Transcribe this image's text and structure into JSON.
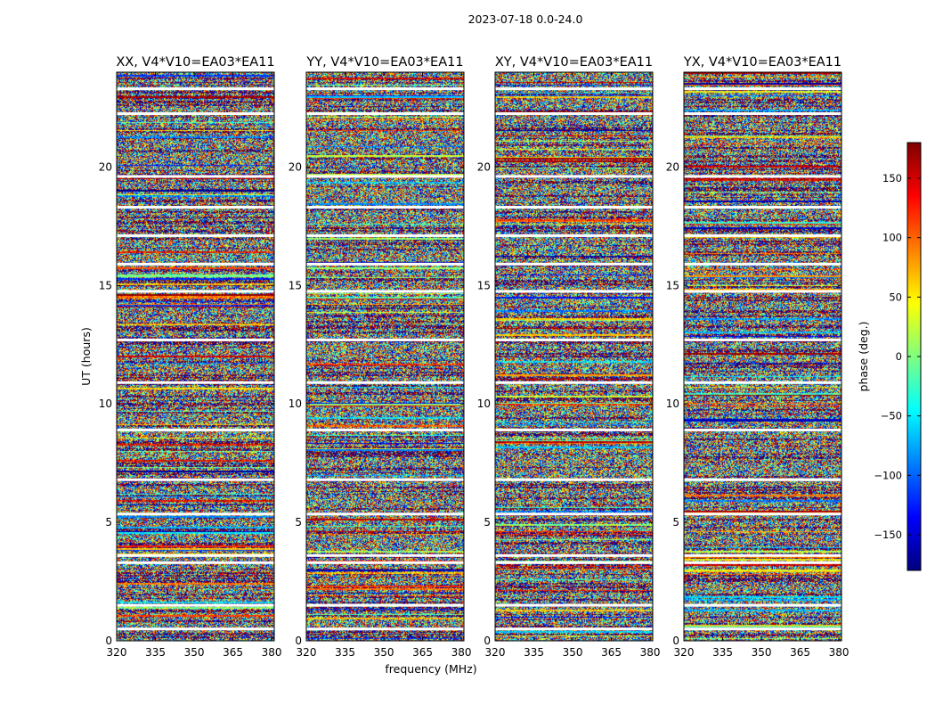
{
  "figure": {
    "suptitle": "2023-07-18 0.0-24.0",
    "xlabel": "frequency (MHz)",
    "ylabel": "UT (hours)"
  },
  "colorbar": {
    "label": "phase (deg.)",
    "range": [
      -180,
      180
    ],
    "ticks": [
      150,
      100,
      50,
      0,
      -50,
      -100,
      -150
    ],
    "tick_labels": [
      "150",
      "100",
      "50",
      "0",
      "−50",
      "−100",
      "−150"
    ],
    "colormap": "jet",
    "colors": [
      "#00007f",
      "#0000ff",
      "#007fff",
      "#00ffff",
      "#7fff7f",
      "#ffff00",
      "#ff7f00",
      "#ff0000",
      "#7f0000"
    ]
  },
  "chart_data": {
    "type": "heatmap",
    "panels": [
      {
        "title": "XX, V4*V10=EA03*EA11",
        "polarization": "XX",
        "baseline": "V4*V10=EA03*EA11"
      },
      {
        "title": "YY, V4*V10=EA03*EA11",
        "polarization": "YY",
        "baseline": "V4*V10=EA03*EA11"
      },
      {
        "title": "XY, V4*V10=EA03*EA11",
        "polarization": "XY",
        "baseline": "V4*V10=EA03*EA11"
      },
      {
        "title": "YX, V4*V10=EA03*EA11",
        "polarization": "YX",
        "baseline": "V4*V10=EA03*EA11"
      }
    ],
    "xlim": [
      320,
      381
    ],
    "ylim": [
      0,
      24
    ],
    "xticks": [
      320,
      335,
      350,
      365,
      380
    ],
    "xtick_labels": [
      "320",
      "335",
      "350",
      "365",
      "380"
    ],
    "yticks": [
      0,
      5,
      10,
      15,
      20
    ],
    "ytick_labels": [
      "0",
      "5",
      "10",
      "15",
      "20"
    ],
    "value_label": "phase (deg.)",
    "value_range": [
      -180,
      180
    ],
    "flagged_rows_hours": [
      0.5,
      1.5,
      3.3,
      3.6,
      5.35,
      6.8,
      8.9,
      10.9,
      12.7,
      14.75,
      15.9,
      17.1,
      18.3,
      19.6,
      22.25,
      23.3
    ]
  }
}
